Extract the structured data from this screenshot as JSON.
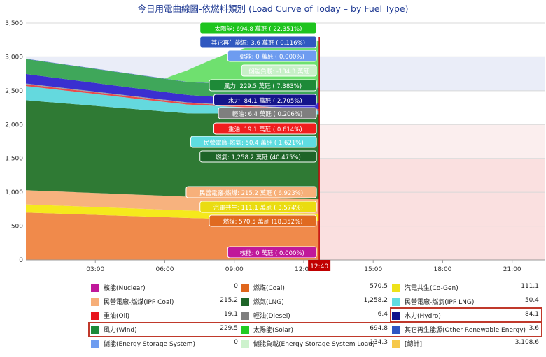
{
  "chart_data": {
    "type": "area",
    "title": "今日用電曲線圖-依燃料類別 (Load Curve of Today – by Fuel Type)",
    "y_ticks": [
      "0",
      "500",
      "1,000",
      "1,500",
      "2,000",
      "2,500",
      "3,000",
      "3,500"
    ],
    "x_ticks": [
      "03:00",
      "06:00",
      "09:00",
      "12:00",
      "15:00",
      "18:00",
      "21:00"
    ],
    "ylim": [
      0,
      3500
    ],
    "xlim_hours": [
      0,
      22.4
    ],
    "current_time": "12:40",
    "current_hour": 12.67,
    "stack": [
      {
        "name": "燃煤(Coal)",
        "color": "#f08a4b",
        "start": 700,
        "mid": 620,
        "end": 570
      },
      {
        "name": "汽電共生(Co-Gen)",
        "color": "#f5e91c",
        "start": 120,
        "mid": 110,
        "end": 111
      },
      {
        "name": "民營電廠-燃煤(IPP Coal)",
        "color": "#f7b27e",
        "start": 210,
        "mid": 205,
        "end": 215
      },
      {
        "name": "燃氣(LNG)",
        "color": "#2f7a34",
        "start": 1330,
        "mid": 1230,
        "end": 1258
      },
      {
        "name": "民營電廠-燃氣(IPP LNG)",
        "color": "#64d9de",
        "start": 210,
        "mid": 130,
        "end": 50
      },
      {
        "name": "重油(Oil)",
        "color": "#e84c4c",
        "start": 25,
        "mid": 22,
        "end": 19
      },
      {
        "name": "輕油(Diesel)",
        "color": "#9aa0a6",
        "start": 12,
        "mid": 10,
        "end": 6
      },
      {
        "name": "水力(Hydro)",
        "color": "#3a2fd0",
        "start": 140,
        "mid": 110,
        "end": 84
      },
      {
        "name": "風力(Wind)",
        "color": "#3fa75a",
        "start": 220,
        "mid": 190,
        "end": 230
      },
      {
        "name": "其它再生能源(Other Renewable Energy)",
        "color": "#4f72c8",
        "start": 5,
        "mid": 4,
        "end": 4
      },
      {
        "name": "太陽能(Solar)",
        "color": "#6fe06f",
        "start": 0,
        "mid": 0,
        "end": 695
      },
      {
        "name": "儲能(Energy Storage System)",
        "color": "#8fb4f0",
        "start": 0,
        "mid": 0,
        "end": 0
      }
    ],
    "tooltips": [
      {
        "text": "太陽能: 694.8 萬瓩 ( 22.351%)",
        "color": "#1ec41e",
        "fg": "#ffffff"
      },
      {
        "text": "其它再生能源: 3.6 萬瓩 ( 0.116%)",
        "color": "#3058c0",
        "fg": "#ffffff"
      },
      {
        "text": "儲能: 0 萬瓩 ( 0.000%)",
        "color": "#6e9cf0",
        "fg": "#ffffff"
      },
      {
        "text": "儲能負載: -134.3 萬瓩",
        "color": "#c8f0c8",
        "fg": "#ffffff"
      },
      {
        "text": "風力: 229.5 萬瓩 ( 7.383%)",
        "color": "#1e8a38",
        "fg": "#ffffff"
      },
      {
        "text": "水力: 84.1 萬瓩 ( 2.705%)",
        "color": "#14148a",
        "fg": "#ffffff"
      },
      {
        "text": "輕油: 6.4 萬瓩 ( 0.206%)",
        "color": "#7f7f7f",
        "fg": "#ffffff"
      },
      {
        "text": "重油: 19.1 萬瓩 ( 0.614%)",
        "color": "#f01e1e",
        "fg": "#ffffff"
      },
      {
        "text": "民營電廠-燃氣: 50.4 萬瓩 ( 1.621%)",
        "color": "#5fdde0",
        "fg": "#ffffff"
      },
      {
        "text": "燃氣: 1,258.2 萬瓩 (40.475%)",
        "color": "#1e6428",
        "fg": "#ffffff"
      },
      {
        "text": "民營電廠-燃煤: 215.2 萬瓩 ( 6.923%)",
        "color": "#f7b07a",
        "fg": "#ffffff"
      },
      {
        "text": "汽電共生: 111.1 萬瓩 ( 3.574%)",
        "color": "#eadc10",
        "fg": "#ffffff"
      },
      {
        "text": "燃煤: 570.5 萬瓩 (18.352%)",
        "color": "#e06a20",
        "fg": "#ffffff"
      },
      {
        "text": "核能: 0 萬瓩 ( 0.000%)",
        "color": "#c0189a",
        "fg": "#ffffff"
      }
    ],
    "legend": [
      [
        {
          "name": "核能(Nuclear)",
          "value": "0",
          "color": "#c0189a"
        },
        {
          "name": "燃煤(Coal)",
          "value": "570.5",
          "color": "#e0661c"
        },
        {
          "name": "汽電共生(Co-Gen)",
          "value": "111.1",
          "color": "#eee21a"
        }
      ],
      [
        {
          "name": "民營電廠-燃煤(IPP Coal)",
          "value": "215.2",
          "color": "#f6ae78"
        },
        {
          "name": "燃氣(LNG)",
          "value": "1,258.2",
          "color": "#1e6428"
        },
        {
          "name": "民營電廠-燃氣(IPP LNG)",
          "value": "50.4",
          "color": "#62dce0"
        }
      ],
      [
        {
          "name": "重油(Oil)",
          "value": "19.1",
          "color": "#e8161e"
        },
        {
          "name": "輕油(Diesel)",
          "value": "6.4",
          "color": "#7f7f7f"
        },
        {
          "name": "水力(Hydro)",
          "value": "84.1",
          "color": "#12128c"
        }
      ],
      [
        {
          "name": "風力(Wind)",
          "value": "229.5",
          "color": "#1e8a38"
        },
        {
          "name": "太陽能(Solar)",
          "value": "694.8",
          "color": "#22cc22"
        },
        {
          "name": "其它再生能源(Other Renewable Energy)",
          "value": "3.6",
          "color": "#2f56c4"
        }
      ],
      [
        {
          "name": "儲能(Energy Storage System)",
          "value": "0",
          "color": "#6e9cf0"
        },
        {
          "name": "儲能負載(Energy Storage System Load)",
          "value": "-134.3",
          "color": "#cdf2cd"
        },
        {
          "name": "[總計]",
          "value": "3,108.6",
          "color": "#f6c84a"
        }
      ]
    ]
  }
}
